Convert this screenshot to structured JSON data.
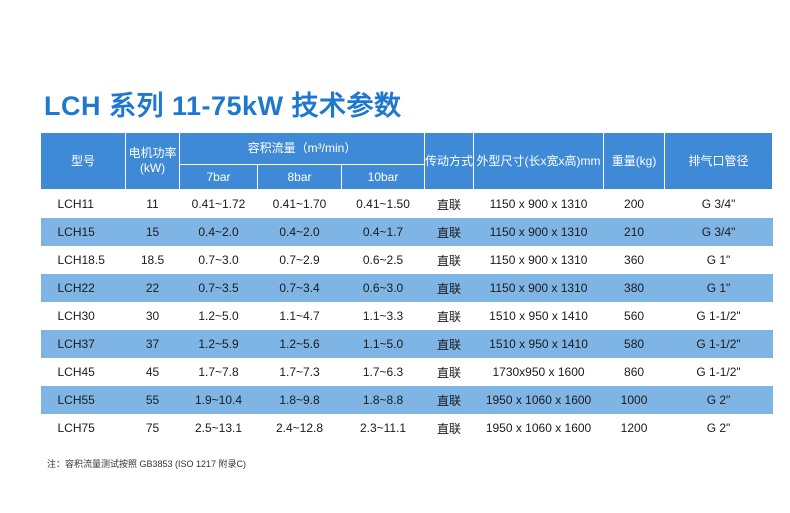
{
  "title": "LCH 系列 11-75kW 技术参数",
  "headers": {
    "model": "型号",
    "power": "电机功率(kW)",
    "flow_group": "容积流量（m³/min）",
    "p7": "7bar",
    "p8": "8bar",
    "p10": "10bar",
    "drive": "传动方式",
    "dims": "外型尺寸(长x宽x高)mm",
    "weight": "重量(kg)",
    "outlet": "排气口管径"
  },
  "rows": [
    {
      "model": "LCH11",
      "power": "11",
      "p7": "0.41~1.72",
      "p8": "0.41~1.70",
      "p10": "0.41~1.50",
      "drive": "直联",
      "dims": "1150 x 900 x 1310",
      "weight": "200",
      "outlet": "G 3/4\""
    },
    {
      "model": "LCH15",
      "power": "15",
      "p7": "0.4~2.0",
      "p8": "0.4~2.0",
      "p10": "0.4~1.7",
      "drive": "直联",
      "dims": "1150 x 900 x 1310",
      "weight": "210",
      "outlet": "G 3/4\""
    },
    {
      "model": "LCH18.5",
      "power": "18.5",
      "p7": "0.7~3.0",
      "p8": "0.7~2.9",
      "p10": "0.6~2.5",
      "drive": "直联",
      "dims": "1150 x 900 x 1310",
      "weight": "360",
      "outlet": "G 1\""
    },
    {
      "model": "LCH22",
      "power": "22",
      "p7": "0.7~3.5",
      "p8": "0.7~3.4",
      "p10": "0.6~3.0",
      "drive": "直联",
      "dims": "1150 x 900 x 1310",
      "weight": "380",
      "outlet": "G 1\""
    },
    {
      "model": "LCH30",
      "power": "30",
      "p7": "1.2~5.0",
      "p8": "1.1~4.7",
      "p10": "1.1~3.3",
      "drive": "直联",
      "dims": "1510 x 950 x 1410",
      "weight": "560",
      "outlet": "G 1-1/2\""
    },
    {
      "model": "LCH37",
      "power": "37",
      "p7": "1.2~5.9",
      "p8": "1.2~5.6",
      "p10": "1.1~5.0",
      "drive": "直联",
      "dims": "1510 x 950 x 1410",
      "weight": "580",
      "outlet": "G 1-1/2\""
    },
    {
      "model": "LCH45",
      "power": "45",
      "p7": "1.7~7.8",
      "p8": "1.7~7.3",
      "p10": "1.7~6.3",
      "drive": "直联",
      "dims": "1730x950 x 1600",
      "weight": "860",
      "outlet": "G 1-1/2\""
    },
    {
      "model": "LCH55",
      "power": "55",
      "p7": "1.9~10.4",
      "p8": "1.8~9.8",
      "p10": "1.8~8.8",
      "drive": "直联",
      "dims": "1950 x 1060 x 1600",
      "weight": "1000",
      "outlet": "G 2\""
    },
    {
      "model": "LCH75",
      "power": "75",
      "p7": "2.5~13.1",
      "p8": "2.4~12.8",
      "p10": "2.3~11.1",
      "drive": "直联",
      "dims": "1950 x 1060 x 1600",
      "weight": "1200",
      "outlet": "G 2\""
    }
  ],
  "note": "注：容积流量测试按照 GB3853 (ISO 1217 附录C)",
  "colors": {
    "title": "#1e78cf",
    "header_bg": "#3f8ad6",
    "alt_row_bg": "#7fb5e5"
  }
}
